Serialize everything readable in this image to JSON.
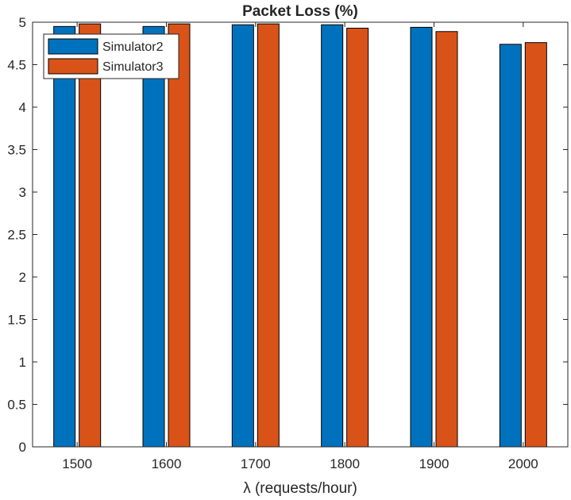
{
  "chart_data": {
    "type": "bar",
    "title": "Packet Loss (%)",
    "xlabel": "λ (requests/hour)",
    "ylabel": "",
    "categories": [
      "1500",
      "1600",
      "1700",
      "1800",
      "1900",
      "2000"
    ],
    "series": [
      {
        "name": "Simulator2",
        "color": "#0072BD",
        "values": [
          4.95,
          4.95,
          4.97,
          4.97,
          4.94,
          4.74
        ]
      },
      {
        "name": "Simulator3",
        "color": "#D95319",
        "values": [
          4.98,
          4.98,
          4.98,
          4.93,
          4.89,
          4.76
        ]
      }
    ],
    "ylim": [
      0,
      5
    ],
    "yticks": [
      "0",
      "0.5",
      "1",
      "1.5",
      "2",
      "2.5",
      "3",
      "3.5",
      "4",
      "4.5",
      "5"
    ],
    "grid": false,
    "legend_position": "top-left"
  }
}
